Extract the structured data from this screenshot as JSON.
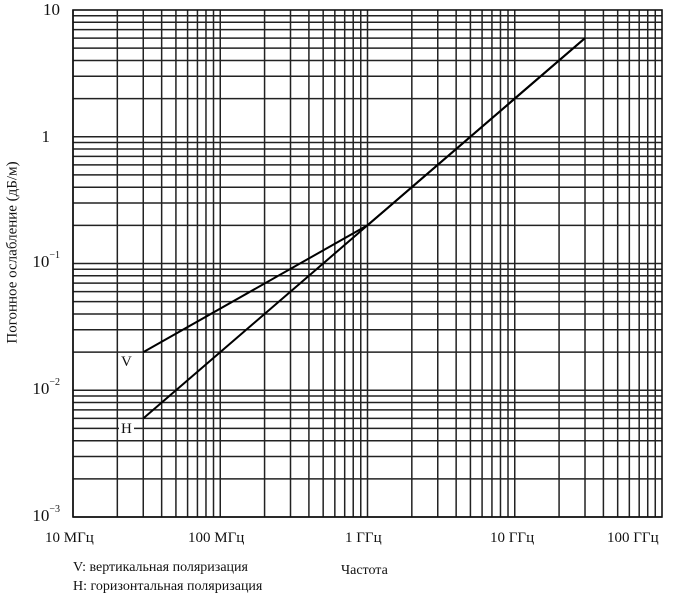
{
  "chart_data": {
    "type": "line",
    "title": "",
    "xlabel": "Частота",
    "ylabel": "Погонное ослабление (дБ/м)",
    "xscale": "log",
    "yscale": "log",
    "xlim_hz": [
      10000000,
      100000000000
    ],
    "ylim": [
      0.001,
      10
    ],
    "grid": true,
    "x_tick_labels": [
      "10 МГц",
      "100 МГц",
      "1 ГГц",
      "10 ГГц",
      "100 ГГц"
    ],
    "y_tick_labels": [
      "10",
      "1",
      "10^-1",
      "10^-2",
      "10^-3"
    ],
    "series": [
      {
        "name": "V",
        "description": "вертикальная поляризация",
        "x_hz": [
          30000000,
          1000000000,
          30000000000
        ],
        "y_db_per_m": [
          0.02,
          0.2,
          6
        ]
      },
      {
        "name": "H",
        "description": "горизонтальная поляризация",
        "x_hz": [
          30000000,
          1000000000,
          30000000000
        ],
        "y_db_per_m": [
          0.006,
          0.2,
          6
        ]
      }
    ],
    "legend": [
      "V: вертикальная поляризация",
      "H: горизонтальная поляризация"
    ],
    "legend_position": "bottom-left"
  },
  "axes": {
    "y_ticks": [
      {
        "base": "10",
        "exp": ""
      },
      {
        "base": "1",
        "exp": ""
      },
      {
        "base": "10",
        "exp": "−1"
      },
      {
        "base": "10",
        "exp": "−2"
      },
      {
        "base": "10",
        "exp": "−3"
      }
    ],
    "x_ticks": [
      "10 МГц",
      "100 МГц",
      "1 ГГц",
      "10 ГГц",
      "100 ГГц"
    ],
    "xlabel": "Частота",
    "ylabel": "Погонное ослабление (дБ/м)"
  },
  "curve_labels": {
    "v": "V",
    "h": "H"
  },
  "legend": {
    "v": "V: вертикальная поляризация",
    "h": "H: горизонтальная поляризация"
  }
}
